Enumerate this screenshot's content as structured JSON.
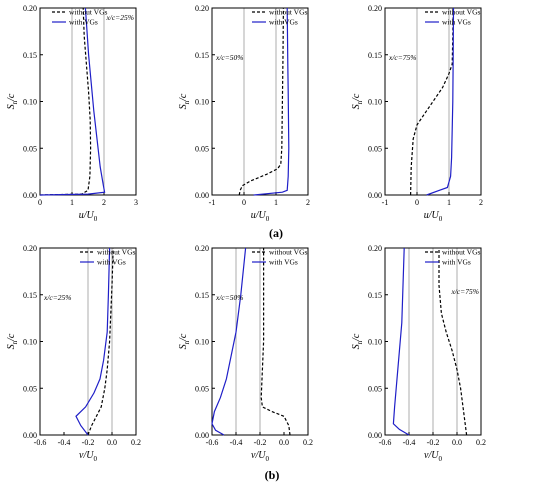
{
  "colors": {
    "without": "#000000",
    "with": "#1f1fc8",
    "grid": "#9a9a9a"
  },
  "captions": {
    "a": "(a)",
    "b": "(b)"
  },
  "chart_data": [
    {
      "id": "a1",
      "type": "line",
      "row": 0,
      "col": 0,
      "xlabel": "u/U0",
      "ylabel": "Sn/c",
      "xlim": [
        0,
        3
      ],
      "ylim": [
        0,
        0.2
      ],
      "xticks": [
        0,
        1,
        2,
        3
      ],
      "yticks": [
        0.0,
        0.05,
        0.1,
        0.15,
        0.2
      ],
      "grid_x": [
        1,
        2
      ],
      "annotation": "x/c=25%",
      "legend": {
        "placement": "top-right",
        "entries": [
          "without VGs",
          "with VGs"
        ]
      },
      "series": [
        {
          "name": "without VGs",
          "style": "dashed",
          "x": [
            0.0,
            1.3,
            1.5,
            1.56,
            1.58,
            1.57,
            1.52,
            1.45,
            1.38,
            1.35
          ],
          "y": [
            0.0,
            0.001,
            0.005,
            0.02,
            0.05,
            0.08,
            0.11,
            0.14,
            0.17,
            0.2
          ]
        },
        {
          "name": "with VGs",
          "style": "solid",
          "x": [
            0.0,
            1.5,
            2.02,
            1.98,
            1.88,
            1.78,
            1.68,
            1.6,
            1.52,
            1.46,
            1.42
          ],
          "y": [
            0.0,
            0.001,
            0.003,
            0.01,
            0.03,
            0.06,
            0.09,
            0.12,
            0.15,
            0.18,
            0.2
          ]
        }
      ]
    },
    {
      "id": "a2",
      "type": "line",
      "row": 0,
      "col": 1,
      "xlabel": "u/U0",
      "ylabel": "Sn/c",
      "xlim": [
        -1,
        2
      ],
      "ylim": [
        0,
        0.2
      ],
      "xticks": [
        -1,
        0,
        1,
        2
      ],
      "yticks": [
        0.0,
        0.05,
        0.1,
        0.15,
        0.2
      ],
      "grid_x": [
        0,
        1
      ],
      "annotation": "x/c=50%",
      "legend": {
        "placement": "top-right",
        "entries": [
          "without VGs",
          "with VGs"
        ]
      },
      "series": [
        {
          "name": "without VGs",
          "style": "dashed",
          "x": [
            -0.15,
            -0.12,
            -0.05,
            0.2,
            0.7,
            1.05,
            1.15,
            1.18,
            1.2,
            1.22,
            1.23
          ],
          "y": [
            0.0,
            0.005,
            0.01,
            0.015,
            0.022,
            0.028,
            0.033,
            0.05,
            0.1,
            0.15,
            0.2
          ]
        },
        {
          "name": "with VGs",
          "style": "solid",
          "x": [
            0.3,
            1.2,
            1.35,
            1.38,
            1.4,
            1.39,
            1.38,
            1.37,
            1.36,
            1.35
          ],
          "y": [
            0.0,
            0.003,
            0.005,
            0.02,
            0.05,
            0.08,
            0.11,
            0.14,
            0.17,
            0.2
          ]
        }
      ]
    },
    {
      "id": "a3",
      "type": "line",
      "row": 0,
      "col": 2,
      "xlabel": "u/U0",
      "ylabel": "Sn/c",
      "xlim": [
        -1,
        2
      ],
      "ylim": [
        0,
        0.2
      ],
      "xticks": [
        -1,
        0,
        1,
        2
      ],
      "yticks": [
        0.0,
        0.05,
        0.1,
        0.15,
        0.2
      ],
      "grid_x": [
        0,
        1
      ],
      "annotation": "x/c=75%",
      "legend": {
        "placement": "top-right",
        "entries": [
          "without VGs",
          "with VGs"
        ]
      },
      "series": [
        {
          "name": "without VGs",
          "style": "dashed",
          "x": [
            -0.2,
            -0.18,
            -0.12,
            0.0,
            0.2,
            0.5,
            0.8,
            1.0,
            1.1,
            1.12,
            1.13
          ],
          "y": [
            0.0,
            0.03,
            0.06,
            0.075,
            0.085,
            0.1,
            0.115,
            0.13,
            0.14,
            0.17,
            0.2
          ]
        },
        {
          "name": "with VGs",
          "style": "solid",
          "x": [
            0.3,
            0.7,
            0.95,
            1.05,
            1.08,
            1.1,
            1.12,
            1.13,
            1.14
          ],
          "y": [
            0.0,
            0.005,
            0.008,
            0.02,
            0.04,
            0.07,
            0.1,
            0.15,
            0.2
          ]
        }
      ]
    },
    {
      "id": "b1",
      "type": "line",
      "row": 1,
      "col": 0,
      "xlabel": "v/U0",
      "ylabel": "Sn/c",
      "xlim": [
        -0.6,
        0.2
      ],
      "ylim": [
        0,
        0.2
      ],
      "xticks": [
        -0.6,
        -0.4,
        -0.2,
        0.0,
        0.2
      ],
      "yticks": [
        0.0,
        0.05,
        0.1,
        0.15,
        0.2
      ],
      "grid_x": [
        -0.2,
        0.0
      ],
      "annotation": "x/c=25%",
      "legend": {
        "placement": "top-right",
        "entries": [
          "without VGs",
          "with VGs"
        ]
      },
      "series": [
        {
          "name": "without VGs",
          "style": "dashed",
          "x": [
            -0.2,
            -0.17,
            -0.13,
            -0.09,
            -0.06,
            -0.04,
            -0.02,
            -0.01,
            0.0,
            0.01
          ],
          "y": [
            0.0,
            0.01,
            0.02,
            0.03,
            0.05,
            0.07,
            0.1,
            0.13,
            0.16,
            0.2
          ]
        },
        {
          "name": "with VGs",
          "style": "solid",
          "x": [
            -0.2,
            -0.26,
            -0.3,
            -0.22,
            -0.15,
            -0.1,
            -0.07,
            -0.04,
            -0.03,
            -0.02
          ],
          "y": [
            0.0,
            0.01,
            0.02,
            0.03,
            0.045,
            0.06,
            0.08,
            0.11,
            0.15,
            0.2
          ]
        }
      ]
    },
    {
      "id": "b2",
      "type": "line",
      "row": 1,
      "col": 1,
      "xlabel": "v/U0",
      "ylabel": "Sn/c",
      "xlim": [
        -0.6,
        0.2
      ],
      "ylim": [
        0,
        0.2
      ],
      "xticks": [
        -0.6,
        -0.4,
        -0.2,
        0.0,
        0.2
      ],
      "yticks": [
        0.0,
        0.05,
        0.1,
        0.15,
        0.2
      ],
      "grid_x": [
        -0.4,
        -0.2
      ],
      "annotation": "x/c=50%",
      "legend": {
        "placement": "top-right",
        "entries": [
          "without VGs",
          "with VGs"
        ]
      },
      "series": [
        {
          "name": "without VGs",
          "style": "dashed",
          "x": [
            0.05,
            0.04,
            0.0,
            -0.1,
            -0.18,
            -0.19,
            -0.18,
            -0.17,
            -0.17,
            -0.17
          ],
          "y": [
            0.0,
            0.01,
            0.02,
            0.025,
            0.03,
            0.04,
            0.07,
            0.1,
            0.15,
            0.2
          ]
        },
        {
          "name": "with VGs",
          "style": "solid",
          "x": [
            -0.5,
            -0.57,
            -0.6,
            -0.58,
            -0.53,
            -0.48,
            -0.44,
            -0.4,
            -0.36,
            -0.32
          ],
          "y": [
            0.0,
            0.005,
            0.012,
            0.025,
            0.04,
            0.06,
            0.085,
            0.11,
            0.15,
            0.2
          ]
        }
      ]
    },
    {
      "id": "b3",
      "type": "line",
      "row": 1,
      "col": 2,
      "xlabel": "v/U0",
      "ylabel": "Sn/c",
      "xlim": [
        -0.6,
        0.2
      ],
      "ylim": [
        0,
        0.2
      ],
      "xticks": [
        -0.6,
        -0.4,
        -0.2,
        0.0,
        0.2
      ],
      "yticks": [
        0.0,
        0.05,
        0.1,
        0.15,
        0.2
      ],
      "grid_x": [
        -0.4,
        -0.2,
        0.0
      ],
      "annotation": "x/c=75%",
      "legend": {
        "placement": "top-right",
        "entries": [
          "without VGs",
          "with VGs"
        ]
      },
      "series": [
        {
          "name": "without VGs",
          "style": "dashed",
          "x": [
            0.08,
            0.07,
            0.05,
            0.03,
            0.0,
            -0.04,
            -0.09,
            -0.13,
            -0.15,
            -0.15
          ],
          "y": [
            0.0,
            0.01,
            0.03,
            0.05,
            0.07,
            0.09,
            0.11,
            0.13,
            0.16,
            0.2
          ]
        },
        {
          "name": "with VGs",
          "style": "solid",
          "x": [
            -0.4,
            -0.48,
            -0.53,
            -0.52,
            -0.5,
            -0.48,
            -0.46,
            -0.45,
            -0.44
          ],
          "y": [
            0.0,
            0.006,
            0.012,
            0.03,
            0.06,
            0.09,
            0.12,
            0.16,
            0.2
          ]
        }
      ]
    }
  ]
}
